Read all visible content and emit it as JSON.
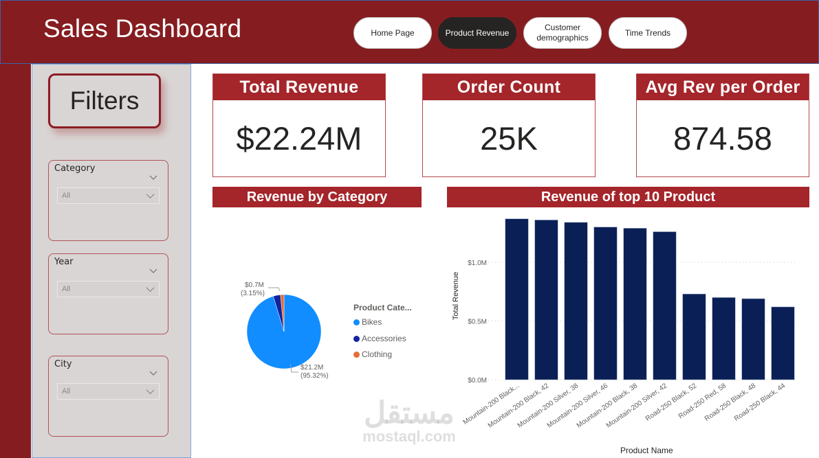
{
  "header": {
    "title": "Sales Dashboard",
    "nav": [
      {
        "label": "Home Page",
        "active": false
      },
      {
        "label": "Product Revenue",
        "active": true
      },
      {
        "label": "Customer demographics",
        "active": false
      },
      {
        "label": "Time Trends",
        "active": false
      }
    ]
  },
  "filters": {
    "title": "Filters",
    "slicers": [
      {
        "label": "Category",
        "value": "All"
      },
      {
        "label": "Year",
        "value": "All"
      },
      {
        "label": "City",
        "value": "All"
      }
    ]
  },
  "kpis": [
    {
      "title": "Total Revenue",
      "value": "$22.24M"
    },
    {
      "title": "Order Count",
      "value": "25K"
    },
    {
      "title": "Avg Rev per Order",
      "value": "874.58"
    }
  ],
  "colors": {
    "header_bg": "#851d20",
    "accent_red": "#a4252a",
    "bar_navy": "#0a1f55",
    "bikes": "#118dff",
    "accessories": "#12239e",
    "clothing": "#e66c37"
  },
  "watermark": {
    "arabic": "مستقل",
    "latin": "mostaql.com"
  },
  "chart_data": [
    {
      "type": "pie",
      "title": "Revenue by Category",
      "legend_title": "Product Cate...",
      "legend_position": "right",
      "slices": [
        {
          "name": "Bikes",
          "value": 21.2,
          "percent": 95.32,
          "label": "$21.2M",
          "pct_label": "(95.32%)",
          "color": "#118dff"
        },
        {
          "name": "Accessories",
          "value": 0.7,
          "percent": 3.15,
          "label": "$0.7M",
          "pct_label": "(3.15%)",
          "color": "#12239e"
        },
        {
          "name": "Clothing",
          "value": 0.34,
          "percent": 1.53,
          "label": "",
          "pct_label": "",
          "color": "#e66c37"
        }
      ]
    },
    {
      "type": "bar",
      "title": "Revenue of top 10 Product",
      "xlabel": "Product Name",
      "ylabel": "Total Revenue",
      "ylim": [
        0,
        1.45
      ],
      "yticks": [
        {
          "value": 0,
          "label": "$0.0M"
        },
        {
          "value": 0.5,
          "label": "$0.5M"
        },
        {
          "value": 1.0,
          "label": "$1.0M"
        }
      ],
      "grid": true,
      "categories": [
        "Mountain-200 Black...",
        "Mountain-200 Black, 42",
        "Mountain-200 Silver, 38",
        "Mountain-200 Silver, 46",
        "Mountain-200 Black, 38",
        "Mountain-200 Silver, 42",
        "Road-250 Black, 52",
        "Road-250 Red, 58",
        "Road-250 Black, 48",
        "Road-250 Black, 44"
      ],
      "values": [
        1.37,
        1.36,
        1.34,
        1.3,
        1.29,
        1.26,
        0.73,
        0.7,
        0.69,
        0.62
      ]
    }
  ]
}
